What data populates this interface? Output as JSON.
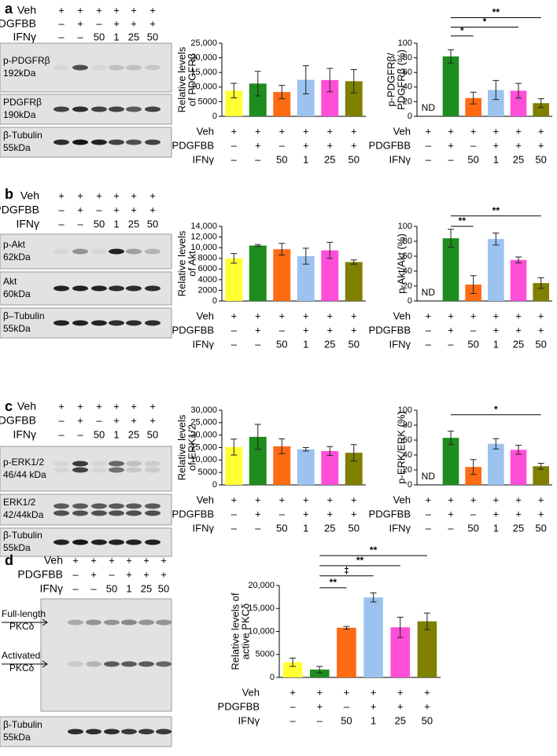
{
  "blots": [
    {
      "letter": "a",
      "treatments": [
        {
          "name": "Veh",
          "marks": [
            "+",
            "+",
            "+",
            "+",
            "+",
            "+"
          ]
        },
        {
          "name": "PDGFBB",
          "marks": [
            "–",
            "+",
            "–",
            "+",
            "+",
            "+"
          ]
        },
        {
          "name": "IFNγ",
          "marks": [
            "–",
            "–",
            "50",
            "1",
            "25",
            "50"
          ]
        }
      ],
      "labels": [
        [
          "p-PDGFRβ",
          "192kDa"
        ],
        [
          "PDGFRβ",
          "190kDa"
        ],
        [
          "β-Tubulin",
          "55kDa"
        ]
      ]
    },
    {
      "letter": "b",
      "treatments": [
        {
          "name": "Veh",
          "marks": [
            "+",
            "+",
            "+",
            "+",
            "+",
            "+"
          ]
        },
        {
          "name": "PDGFBB",
          "marks": [
            "–",
            "+",
            "–",
            "+",
            "+",
            "+"
          ]
        },
        {
          "name": "IFNγ",
          "marks": [
            "–",
            "–",
            "50",
            "1",
            "25",
            "50"
          ]
        }
      ],
      "labels": [
        [
          "p-Akt",
          "62kDa"
        ],
        [
          "Akt",
          "60kDa"
        ],
        [
          "β–Tubulin",
          "55kDa"
        ]
      ]
    },
    {
      "letter": "c",
      "treatments": [
        {
          "name": "Veh",
          "marks": [
            "+",
            "+",
            "+",
            "+",
            "+",
            "+"
          ]
        },
        {
          "name": "PDGFBB",
          "marks": [
            "–",
            "+",
            "–",
            "+",
            "+",
            "+"
          ]
        },
        {
          "name": "IFNγ",
          "marks": [
            "–",
            "–",
            "50",
            "1",
            "25",
            "50"
          ]
        }
      ],
      "labels": [
        [
          "p-ERK1/2",
          "46/44 kDa"
        ],
        [
          "ERK1/2",
          "42/44kDa"
        ],
        [
          "β-Tubulin",
          "55kDa"
        ]
      ]
    },
    {
      "letter": "d",
      "treatments": [
        {
          "name": "Veh",
          "marks": [
            "+",
            "+",
            "+",
            "+",
            "+",
            "+"
          ]
        },
        {
          "name": "PDGFBB",
          "marks": [
            "–",
            "+",
            "–",
            "+",
            "+",
            "+"
          ]
        },
        {
          "name": "IFNγ",
          "marks": [
            "–",
            "–",
            "50",
            "1",
            "25",
            "50"
          ]
        }
      ],
      "labels": [
        [
          "Full-length",
          "PKCδ"
        ],
        [
          "Activated",
          "PKCδ"
        ],
        [
          "β-Tubulin",
          "55kDa"
        ]
      ]
    }
  ],
  "chart_data": [
    {
      "type": "bar",
      "ylabel": [
        "Relative levels",
        "of PDGFRβ"
      ],
      "category_rows": [
        "Veh",
        "PDGFBB",
        "IFNγ"
      ],
      "categories": [
        [
          "+",
          "–",
          "–"
        ],
        [
          "+",
          "+",
          "–"
        ],
        [
          "+",
          "–",
          "50"
        ],
        [
          "+",
          "+",
          "1"
        ],
        [
          "+",
          "+",
          "25"
        ],
        [
          "+",
          "+",
          "50"
        ]
      ],
      "colors": [
        "#ffff33",
        "#1e8c1e",
        "#ff6a13",
        "#9cc3f0",
        "#ff4fd8",
        "#7f7f00"
      ],
      "values": [
        8800,
        11200,
        8300,
        12500,
        12400,
        12000
      ],
      "errors": [
        2500,
        4200,
        2300,
        4800,
        4000,
        4000
      ],
      "ylim": [
        0,
        25000
      ],
      "yticks": [
        0,
        5000,
        {
          "value": 10000,
          "label": "10,000"
        },
        {
          "value": 15000,
          "label": "15,000"
        },
        {
          "value": 20000,
          "label": "20,000"
        },
        {
          "value": 25000,
          "label": "25,000"
        }
      ]
    },
    {
      "type": "bar",
      "ylabel": [
        "p-PDGFRβ/",
        "PDGFRβ (%)"
      ],
      "category_rows": [
        "Veh",
        "PDGFBB",
        "IFNγ"
      ],
      "categories": [
        [
          "+",
          "–",
          "–"
        ],
        [
          "+",
          "+",
          "–"
        ],
        [
          "+",
          "–",
          "50"
        ],
        [
          "+",
          "+",
          "1"
        ],
        [
          "+",
          "+",
          "25"
        ],
        [
          "+",
          "+",
          "50"
        ]
      ],
      "colors": [
        "#ffff33",
        "#1e8c1e",
        "#ff6a13",
        "#9cc3f0",
        "#ff4fd8",
        "#7f7f00"
      ],
      "values": [
        null,
        82,
        25,
        36,
        35,
        18
      ],
      "errors": [
        null,
        9,
        8,
        13,
        10,
        6
      ],
      "value_labels": [
        "ND",
        null,
        null,
        null,
        null,
        null
      ],
      "ylim": [
        0,
        100
      ],
      "yticks": [
        0,
        20,
        40,
        60,
        80,
        100
      ],
      "annotations": [
        {
          "from": 1,
          "to": 5,
          "y": 135,
          "label": "**"
        },
        {
          "from": 1,
          "to": 4,
          "y": 122,
          "label": "*"
        },
        {
          "from": 1,
          "to": 2,
          "y": 110,
          "label": "*"
        }
      ]
    },
    {
      "type": "bar",
      "ylabel": [
        "Relative levels",
        "of Akt"
      ],
      "category_rows": [
        "Veh",
        "PDGFBB",
        "IFNγ"
      ],
      "categories": [
        [
          "+",
          "–",
          "–"
        ],
        [
          "+",
          "+",
          "–"
        ],
        [
          "+",
          "–",
          "50"
        ],
        [
          "+",
          "+",
          "1"
        ],
        [
          "+",
          "+",
          "25"
        ],
        [
          "+",
          "+",
          "50"
        ]
      ],
      "colors": [
        "#ffff33",
        "#1e8c1e",
        "#ff6a13",
        "#9cc3f0",
        "#ff4fd8",
        "#7f7f00"
      ],
      "values": [
        8000,
        10400,
        9700,
        8400,
        9500,
        7300
      ],
      "errors": [
        900,
        200,
        1100,
        1500,
        1500,
        400
      ],
      "ylim": [
        0,
        14000
      ],
      "yticks": [
        0,
        2000,
        4000,
        6000,
        8000,
        {
          "value": 10000,
          "label": "10,000"
        },
        {
          "value": 12000,
          "label": "12,000"
        },
        {
          "value": 14000,
          "label": "14,000"
        }
      ]
    },
    {
      "type": "bar",
      "ylabel": [
        "p-Akt/Akt (%)"
      ],
      "category_rows": [
        "Veh",
        "PDGFBB",
        "IFNγ"
      ],
      "categories": [
        [
          "+",
          "–",
          "–"
        ],
        [
          "+",
          "+",
          "–"
        ],
        [
          "+",
          "–",
          "50"
        ],
        [
          "+",
          "+",
          "1"
        ],
        [
          "+",
          "+",
          "25"
        ],
        [
          "+",
          "+",
          "50"
        ]
      ],
      "colors": [
        "#ffff33",
        "#1e8c1e",
        "#ff6a13",
        "#9cc3f0",
        "#ff4fd8",
        "#7f7f00"
      ],
      "values": [
        null,
        84,
        22,
        83,
        55,
        24
      ],
      "errors": [
        null,
        12,
        12,
        8,
        4,
        7
      ],
      "value_labels": [
        "ND",
        null,
        null,
        null,
        null,
        null
      ],
      "ylim": [
        0,
        100
      ],
      "yticks": [
        0,
        20,
        40,
        60,
        80,
        100
      ],
      "annotations": [
        {
          "from": 1,
          "to": 5,
          "y": 114,
          "label": "**"
        },
        {
          "from": 1,
          "to": 2,
          "y": 100,
          "label": "**"
        }
      ]
    },
    {
      "type": "bar",
      "ylabel": [
        "Relative levels",
        "of ERK1/2"
      ],
      "category_rows": [
        "Veh",
        "PDGFBB",
        "IFNγ"
      ],
      "categories": [
        [
          "+",
          "–",
          "–"
        ],
        [
          "+",
          "+",
          "–"
        ],
        [
          "+",
          "–",
          "50"
        ],
        [
          "+",
          "+",
          "1"
        ],
        [
          "+",
          "+",
          "25"
        ],
        [
          "+",
          "+",
          "50"
        ]
      ],
      "colors": [
        "#ffff33",
        "#1e8c1e",
        "#ff6a13",
        "#9cc3f0",
        "#ff4fd8",
        "#7f7f00"
      ],
      "values": [
        15200,
        19300,
        15500,
        14300,
        13600,
        12900
      ],
      "errors": [
        3200,
        5000,
        3000,
        700,
        1800,
        3300
      ],
      "ylim": [
        0,
        30000
      ],
      "yticks": [
        0,
        5000,
        {
          "value": 10000,
          "label": "10,000"
        },
        {
          "value": 15000,
          "label": "15,000"
        },
        {
          "value": 20000,
          "label": "20,000"
        },
        {
          "value": 25000,
          "label": "25,000"
        },
        {
          "value": 30000,
          "label": "30,000"
        }
      ]
    },
    {
      "type": "bar",
      "ylabel": [
        "p-ERK/ERK (%)"
      ],
      "category_rows": [
        "Veh",
        "PDGFBB",
        "IFNγ"
      ],
      "categories": [
        [
          "+",
          "–",
          "–"
        ],
        [
          "+",
          "+",
          "–"
        ],
        [
          "+",
          "–",
          "50"
        ],
        [
          "+",
          "+",
          "1"
        ],
        [
          "+",
          "+",
          "25"
        ],
        [
          "+",
          "+",
          "50"
        ]
      ],
      "colors": [
        "#ffff33",
        "#1e8c1e",
        "#ff6a13",
        "#9cc3f0",
        "#ff4fd8",
        "#7f7f00"
      ],
      "values": [
        null,
        63,
        24,
        55,
        47,
        25
      ],
      "errors": [
        null,
        9,
        10,
        7,
        6,
        4
      ],
      "value_labels": [
        "ND",
        null,
        null,
        null,
        null,
        null
      ],
      "ylim": [
        0,
        100
      ],
      "yticks": [
        0,
        20,
        40,
        60,
        80,
        100
      ],
      "annotations": [
        {
          "from": 1,
          "to": 5,
          "y": 94,
          "label": "*"
        }
      ]
    },
    {
      "type": "bar",
      "ylabel": [
        "Relative levels of",
        "active PKCδ"
      ],
      "category_rows": [
        "Veh",
        "PDGFBB",
        "IFNγ"
      ],
      "categories": [
        [
          "+",
          "–",
          "–"
        ],
        [
          "+",
          "+",
          "–"
        ],
        [
          "+",
          "–",
          "50"
        ],
        [
          "+",
          "+",
          "1"
        ],
        [
          "+",
          "+",
          "25"
        ],
        [
          "+",
          "+",
          "50"
        ]
      ],
      "colors": [
        "#ffff33",
        "#1e8c1e",
        "#ff6a13",
        "#9cc3f0",
        "#ff4fd8",
        "#7f7f00"
      ],
      "values": [
        3300,
        1700,
        10800,
        17400,
        10900,
        12200
      ],
      "errors": [
        900,
        700,
        300,
        1000,
        2200,
        1800
      ],
      "ylim": [
        0,
        20000
      ],
      "yticks": [
        0,
        5000,
        {
          "value": 10000,
          "label": "10,000"
        },
        {
          "value": 15000,
          "label": "15,000"
        },
        {
          "value": 20000,
          "label": "20,000"
        }
      ],
      "annotations": [
        {
          "from": 1,
          "to": 5,
          "y": 26500,
          "label": "**"
        },
        {
          "from": 1,
          "to": 4,
          "y": 24300,
          "label": "**"
        },
        {
          "from": 1,
          "to": 3,
          "y": 22100,
          "label": "‡"
        },
        {
          "from": 1,
          "to": 2,
          "y": 19500,
          "label": "**"
        }
      ]
    }
  ]
}
